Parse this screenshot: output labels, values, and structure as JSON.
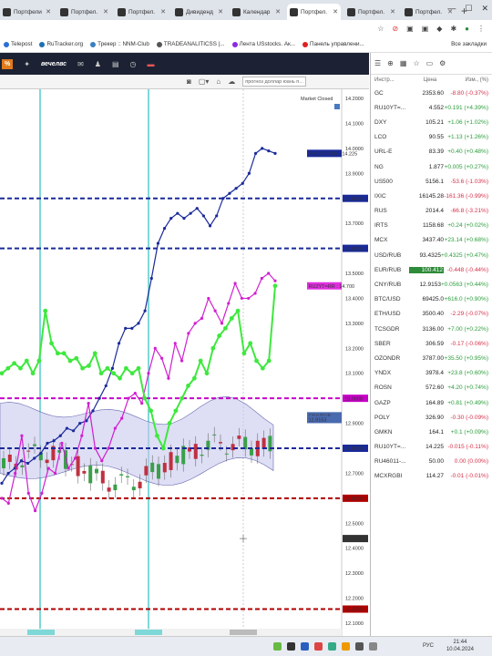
{
  "browser": {
    "tabs": [
      {
        "label": "Портфели",
        "active": false
      },
      {
        "label": "Портфел.",
        "active": false
      },
      {
        "label": "Портфел.",
        "active": false
      },
      {
        "label": "Дивиденд",
        "active": false
      },
      {
        "label": "Календар",
        "active": false
      },
      {
        "label": "Портфел.",
        "active": true
      },
      {
        "label": "Портфел.",
        "active": false
      },
      {
        "label": "Портфел.",
        "active": false
      }
    ],
    "new_tab": "+",
    "bookmarks": [
      {
        "label": "Telepost",
        "color": "#2a6fd6"
      },
      {
        "label": "RuTracker.org",
        "color": "#1f6fb0"
      },
      {
        "label": "Трекер :: NNM-Club",
        "color": "#3a7fc0"
      },
      {
        "label": "TRADEANALITICSS |...",
        "color": "#555555"
      },
      {
        "label": "Лента USstocks. Ак...",
        "color": "#8a2be2"
      },
      {
        "label": "Панель управлени...",
        "color": "#e02020"
      }
    ],
    "all_bookmarks": "Все закладки"
  },
  "app": {
    "badge": "%",
    "brand": "вечелвс",
    "search_placeholder": "прогноз доллар юань п..."
  },
  "chart": {
    "market_status": "Market Closed",
    "y_ticks": [
      "14.2000",
      "14.1000",
      "14.0000",
      "13.9000",
      "13.8000",
      "13.7000",
      "13.6000",
      "13.5000",
      "13.4000",
      "13.3000",
      "13.2000",
      "13.1000",
      "13.0000",
      "12.9000",
      "12.8000",
      "12.7000",
      "12.6000",
      "12.5000",
      "12.4000",
      "12.3000",
      "12.2000",
      "12.1000"
    ],
    "levels": [
      {
        "label": "13.8000",
        "value": 13.8,
        "color": "#1a2a9a"
      },
      {
        "label": "13.6000",
        "value": 13.6,
        "color": "#1a2a9a"
      },
      {
        "label": "13.0000",
        "value": 13.0,
        "color": "#c800c8"
      },
      {
        "label": "12.8000",
        "value": 12.8,
        "color": "#1a2a9a"
      },
      {
        "label": "12.6000",
        "value": 12.6,
        "color": "#b00000"
      },
      {
        "label": "12.1565",
        "value": 12.1565,
        "color": "#b00000"
      }
    ],
    "tags": [
      {
        "label": "RU10YT=RR : 14.225",
        "value": 13.98,
        "color": "#1a2a9a"
      },
      {
        "label": "RU2YT=RR : 14.700",
        "value": 13.45,
        "color": "#e030e0"
      },
      {
        "label": "CNY/RUB",
        "value": 12.93,
        "color": "#4a6ab0"
      },
      {
        "label": "12.9153",
        "value": 12.915,
        "color": "#4a6ab0"
      },
      {
        "label": "12.4387",
        "value": 12.4387,
        "color": "#333333"
      }
    ],
    "cursor_value": "12.4387"
  },
  "chart_data": {
    "type": "line",
    "title": "",
    "y_range": [
      12.1,
      14.2
    ],
    "series": [
      {
        "name": "RU10YT=RR",
        "color": "#1a2a9a",
        "values": [
          12.66,
          12.7,
          12.72,
          12.75,
          12.74,
          12.76,
          12.78,
          12.82,
          12.83,
          12.85,
          12.88,
          12.87,
          12.9,
          12.91,
          12.95,
          13.0,
          13.05,
          13.12,
          13.22,
          13.28,
          13.28,
          13.3,
          13.35,
          13.48,
          13.62,
          13.68,
          13.72,
          13.74,
          13.72,
          13.74,
          13.76,
          13.73,
          13.69,
          13.73,
          13.8,
          13.82,
          13.84,
          13.86,
          13.9,
          13.98,
          14.0,
          13.99,
          13.98
        ]
      },
      {
        "name": "RU2YT=RR",
        "color": "#d020d0",
        "values": [
          12.6,
          12.58,
          12.7,
          12.85,
          12.62,
          12.55,
          12.62,
          12.72,
          12.7,
          12.82,
          12.72,
          12.76,
          12.85,
          12.98,
          12.8,
          12.75,
          12.8,
          12.88,
          12.92,
          13.0,
          13.02,
          12.98,
          13.1,
          13.2,
          13.16,
          13.08,
          13.22,
          13.15,
          13.26,
          13.3,
          13.32,
          13.4,
          13.35,
          13.3,
          13.38,
          13.46,
          13.4,
          13.4,
          13.42,
          13.48,
          13.5,
          13.47
        ]
      },
      {
        "name": "",
        "color": "#3ee83e",
        "values": [
          13.1,
          13.12,
          13.14,
          13.12,
          13.15,
          13.1,
          13.15,
          13.35,
          13.22,
          13.18,
          13.18,
          13.15,
          13.16,
          13.12,
          13.13,
          13.18,
          13.1,
          13.12,
          13.1,
          13.08,
          13.12,
          13.1,
          13.12,
          13.0,
          12.95,
          12.85,
          12.8,
          12.9,
          12.95,
          13.0,
          13.05,
          13.08,
          13.15,
          13.1,
          13.2,
          13.25,
          13.28,
          13.32,
          13.35,
          13.18,
          13.22,
          13.15,
          13.12,
          13.15,
          13.45
        ]
      }
    ]
  },
  "watchlist": {
    "headers": [
      "Инстр...",
      "Цена",
      "Изм., (%)"
    ],
    "rows": [
      {
        "sym": "GC",
        "price": "2353.60",
        "chg": "-8.80 (-0.37%)",
        "dir": "down"
      },
      {
        "sym": "RU10YT=...",
        "price": "4.552",
        "chg": "+0.191 (+4.39%)",
        "dir": "up"
      },
      {
        "sym": "DXY",
        "price": "105.21",
        "chg": "+1.06 (+1.02%)",
        "dir": "up"
      },
      {
        "sym": "LCO",
        "price": "90.55",
        "chg": "+1.13 (+1.26%)",
        "dir": "up"
      },
      {
        "sym": "URL-E",
        "price": "83.39",
        "chg": "+0.40 (+0.48%)",
        "dir": "up"
      },
      {
        "sym": "NG",
        "price": "1.877",
        "chg": "+0.005 (+0.27%)",
        "dir": "up"
      },
      {
        "sym": "US500",
        "price": "5156.1",
        "chg": "-53.6 (-1.03%)",
        "dir": "down"
      },
      {
        "sym": "IXIC",
        "price": "16145.28",
        "chg": "-161.36 (-0.99%)",
        "dir": "down"
      },
      {
        "sym": "RUS",
        "price": "2014.4",
        "chg": "-66.8 (-3.21%)",
        "dir": "down"
      },
      {
        "sym": "IRTS",
        "price": "1158.68",
        "chg": "+0.24 (+0.02%)",
        "dir": "up"
      },
      {
        "sym": "MCX",
        "price": "3437.40",
        "chg": "+23.14 (+0.68%)",
        "dir": "up"
      },
      {
        "sym": "USD/RUB",
        "price": "93.4325",
        "chg": "+0.4325 (+0.47%)",
        "dir": "up"
      },
      {
        "sym": "EUR/RUB",
        "price": "100.412",
        "chg": "-0.448 (-0.44%)",
        "dir": "down",
        "highlight": true
      },
      {
        "sym": "CNY/RUB",
        "price": "12.9153",
        "chg": "+0.0563 (+0.44%)",
        "dir": "up"
      },
      {
        "sym": "BTC/USD",
        "price": "69425.0",
        "chg": "+616.0 (+0.90%)",
        "dir": "up"
      },
      {
        "sym": "ETH/USD",
        "price": "3500.40",
        "chg": "-2.29 (-0.07%)",
        "dir": "down"
      },
      {
        "sym": "TCSGDR",
        "price": "3136.00",
        "chg": "+7.00 (+0.22%)",
        "dir": "up"
      },
      {
        "sym": "SBER",
        "price": "306.59",
        "chg": "-0.17 (-0.06%)",
        "dir": "down"
      },
      {
        "sym": "OZONDR",
        "price": "3787.00",
        "chg": "+35.50 (+0.95%)",
        "dir": "up"
      },
      {
        "sym": "YNDX",
        "price": "3978.4",
        "chg": "+23.8 (+0.60%)",
        "dir": "up"
      },
      {
        "sym": "ROSN",
        "price": "572.60",
        "chg": "+4.20 (+0.74%)",
        "dir": "up"
      },
      {
        "sym": "GAZP",
        "price": "164.89",
        "chg": "+0.81 (+0.49%)",
        "dir": "up"
      },
      {
        "sym": "POLY",
        "price": "326.90",
        "chg": "-0.30 (-0.09%)",
        "dir": "down"
      },
      {
        "sym": "GMKN",
        "price": "164.1",
        "chg": "+0.1 (+0.09%)",
        "dir": "up"
      },
      {
        "sym": "RU10YT=...",
        "price": "14.225",
        "chg": "-0.015 (-0.11%)",
        "dir": "down"
      },
      {
        "sym": "RU46011-...",
        "price": "50.00",
        "chg": "0.00 (0.00%)",
        "dir": "down"
      },
      {
        "sym": "MCXRGBI",
        "price": "114.27",
        "chg": "-0.01 (-0.01%)",
        "dir": "down"
      }
    ]
  },
  "taskbar": {
    "lang": "РУС",
    "time": "21:44",
    "date": "10.04.2024"
  }
}
